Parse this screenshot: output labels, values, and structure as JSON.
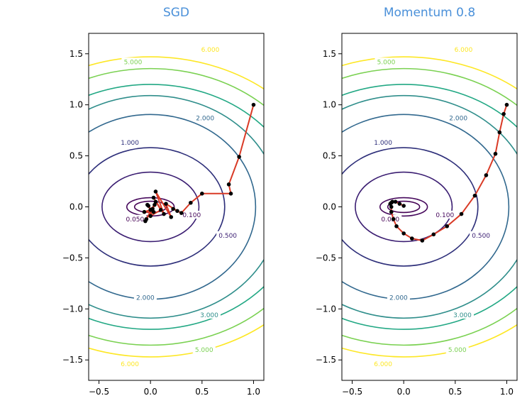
{
  "colors": {
    "title": "#4a90d9",
    "path": "#d93a26",
    "point": "#000000",
    "background": "#ffffff",
    "level_colors": {
      "0.050": "#440154",
      "0.100": "#46085c",
      "0.500": "#3b1e72",
      "1.000": "#2e2f7a",
      "2.000": "#31688e",
      "3.000": "#2f8e8b",
      "4.000": "#22a884",
      "5.000": "#7ad151",
      "6.000": "#fde725"
    }
  },
  "chart_data": [
    {
      "type": "line",
      "title": "SGD",
      "xlim": [
        -0.6,
        1.1
      ],
      "ylim": [
        -1.7,
        1.7
      ],
      "xticks": [
        -0.5,
        0.0,
        0.5,
        1.0
      ],
      "xtick_labels": [
        "−0.5",
        "0.0",
        "0.5",
        "1.0"
      ],
      "yticks": [
        -1.5,
        -1.0,
        -0.5,
        0.0,
        0.5,
        1.0,
        1.5
      ],
      "ytick_labels": [
        "−1.5",
        "−1.0",
        "−0.5",
        "0.0",
        "0.5",
        "1.0",
        "1.5"
      ],
      "contour_levels": [
        "0.050",
        "0.100",
        "0.500",
        "1.000",
        "2.000",
        "3.000",
        "4.000",
        "5.000",
        "6.000"
      ],
      "contour_labels": [
        {
          "text": "0.050",
          "x": -0.15,
          "y": -0.12
        },
        {
          "text": "0.100",
          "x": 0.4,
          "y": -0.08
        },
        {
          "text": "0.500",
          "x": 0.75,
          "y": -0.28
        },
        {
          "text": "1.000",
          "x": -0.2,
          "y": 0.63
        },
        {
          "text": "2.000",
          "x": 0.53,
          "y": 0.87
        },
        {
          "text": "2.000",
          "x": -0.05,
          "y": -0.89
        },
        {
          "text": "3.000",
          "x": 0.57,
          "y": -1.06
        },
        {
          "text": "5.000",
          "x": -0.17,
          "y": 1.42
        },
        {
          "text": "5.000",
          "x": 0.52,
          "y": -1.4
        },
        {
          "text": "6.000",
          "x": 0.58,
          "y": 1.54
        },
        {
          "text": "6.000",
          "x": -0.2,
          "y": -1.54
        }
      ],
      "path": {
        "x": [
          1.0,
          0.86,
          0.76,
          0.78,
          0.5,
          0.39,
          0.3,
          0.22,
          0.26,
          0.15,
          0.2,
          0.05,
          0.13,
          0.03,
          0.1,
          0.0,
          0.05,
          -0.04,
          0.04,
          -0.05,
          0.02,
          -0.06,
          0.03,
          -0.03,
          0.0,
          -0.02
        ],
        "y": [
          1.0,
          0.49,
          0.22,
          0.13,
          0.13,
          0.04,
          -0.06,
          -0.02,
          -0.04,
          0.03,
          -0.1,
          0.15,
          -0.07,
          0.09,
          -0.03,
          -0.09,
          0.05,
          -0.12,
          0.02,
          -0.14,
          -0.02,
          -0.05,
          -0.05,
          0.02,
          -0.03,
          0.01
        ]
      }
    },
    {
      "type": "line",
      "title": "Momentum 0.8",
      "xlim": [
        -0.6,
        1.1
      ],
      "ylim": [
        -1.7,
        1.7
      ],
      "xticks": [
        -0.5,
        0.0,
        0.5,
        1.0
      ],
      "xtick_labels": [
        "−0.5",
        "0.0",
        "0.5",
        "1.0"
      ],
      "yticks": [
        -1.5,
        -1.0,
        -0.5,
        0.0,
        0.5,
        1.0,
        1.5
      ],
      "ytick_labels": [
        "−1.5",
        "−1.0",
        "−0.5",
        "0.0",
        "0.5",
        "1.0",
        "1.5"
      ],
      "contour_levels": [
        "0.050",
        "0.100",
        "0.500",
        "1.000",
        "2.000",
        "3.000",
        "4.000",
        "5.000",
        "6.000"
      ],
      "contour_labels": [
        {
          "text": "0.050",
          "x": -0.13,
          "y": -0.12
        },
        {
          "text": "0.100",
          "x": 0.4,
          "y": -0.08
        },
        {
          "text": "0.500",
          "x": 0.75,
          "y": -0.28
        },
        {
          "text": "1.000",
          "x": -0.2,
          "y": 0.63
        },
        {
          "text": "2.000",
          "x": 0.53,
          "y": 0.87
        },
        {
          "text": "2.000",
          "x": -0.05,
          "y": -0.89
        },
        {
          "text": "3.000",
          "x": 0.57,
          "y": -1.06
        },
        {
          "text": "5.000",
          "x": -0.17,
          "y": 1.42
        },
        {
          "text": "5.000",
          "x": 0.52,
          "y": -1.4
        },
        {
          "text": "6.000",
          "x": 0.58,
          "y": 1.54
        },
        {
          "text": "6.000",
          "x": -0.2,
          "y": -1.54
        }
      ],
      "path": {
        "x": [
          1.0,
          0.97,
          0.93,
          0.89,
          0.8,
          0.69,
          0.56,
          0.42,
          0.29,
          0.18,
          0.08,
          0.0,
          -0.07,
          -0.1,
          -0.12,
          -0.12,
          -0.13,
          -0.12,
          -0.11,
          -0.08,
          -0.04,
          0.0
        ],
        "y": [
          1.0,
          0.91,
          0.73,
          0.52,
          0.31,
          0.11,
          -0.07,
          -0.19,
          -0.27,
          -0.33,
          -0.31,
          -0.26,
          -0.19,
          -0.12,
          -0.05,
          0.0,
          0.03,
          0.04,
          0.05,
          0.05,
          0.03,
          0.01
        ]
      }
    }
  ]
}
